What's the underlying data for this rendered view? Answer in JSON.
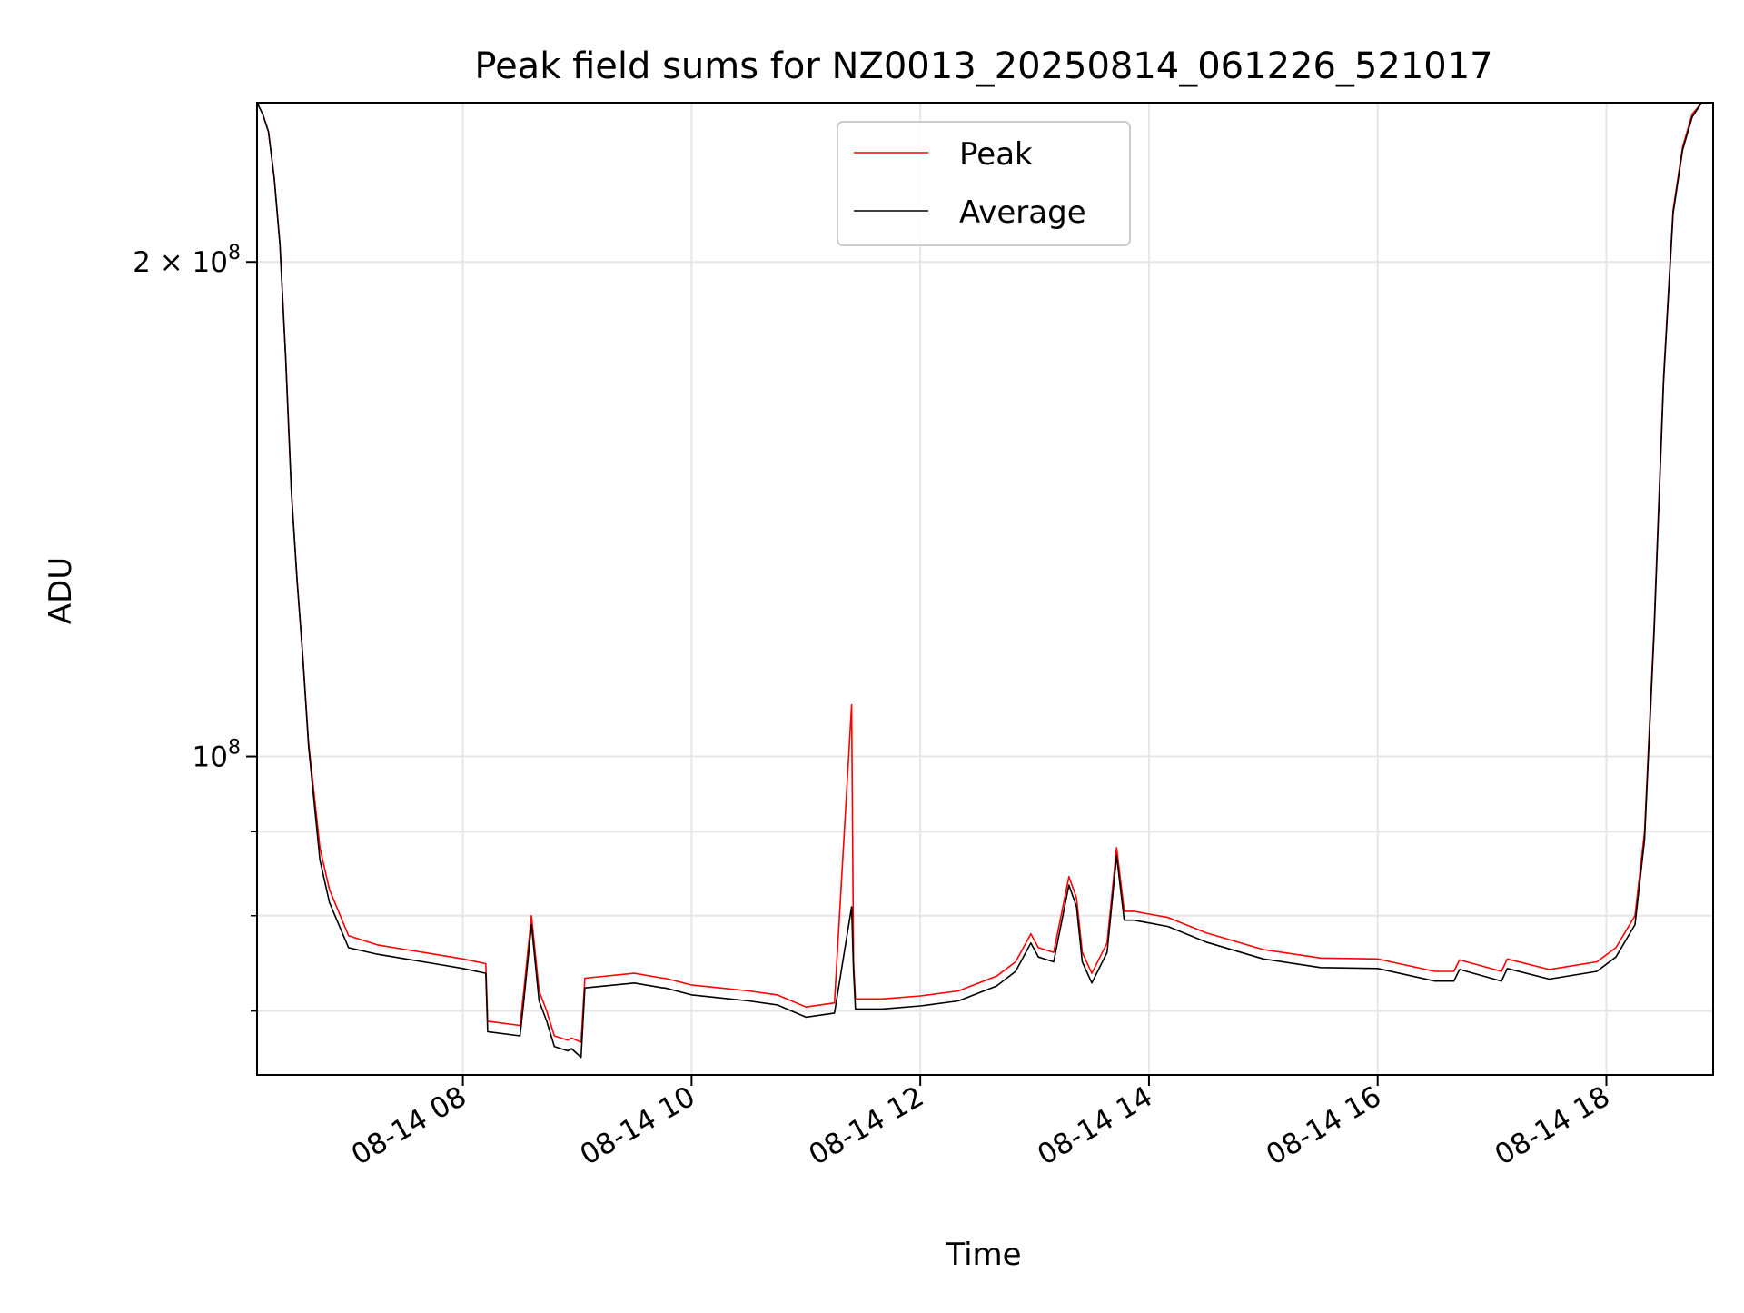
{
  "chart_data": {
    "type": "line",
    "title": "Peak field sums for NZ0013_20250814_061226_521017",
    "xlabel": "Time",
    "ylabel": "ADU",
    "x_ticks": [
      "08-14 08",
      "08-14 10",
      "08-14 12",
      "08-14 14",
      "08-14 16",
      "08-14 18"
    ],
    "y_ticks": [
      {
        "label_base": "10",
        "label_exp": "8",
        "label_prefix": "",
        "value": 100000000
      },
      {
        "label_base": "10",
        "label_exp": "8",
        "label_prefix": "2 × ",
        "value": 200000000
      }
    ],
    "xlim": [
      "2025-08-14 06:12",
      "2025-08-14 18:56"
    ],
    "ylim": [
      64000000,
      250000000
    ],
    "y_scale": "log",
    "grid": true,
    "legend_position": "upper center",
    "colors": {
      "Peak": "#ff0000",
      "Average": "#000000"
    },
    "series": [
      {
        "name": "Peak",
        "x": [
          "2025-08-14 06:12",
          "2025-08-14 06:15",
          "2025-08-14 06:18",
          "2025-08-14 06:21",
          "2025-08-14 06:24",
          "2025-08-14 06:27",
          "2025-08-14 06:30",
          "2025-08-14 06:33",
          "2025-08-14 06:36",
          "2025-08-14 06:39",
          "2025-08-14 06:45",
          "2025-08-14 06:50",
          "2025-08-14 07:00",
          "2025-08-14 07:15",
          "2025-08-14 07:30",
          "2025-08-14 07:45",
          "2025-08-14 08:00",
          "2025-08-14 08:12",
          "2025-08-14 08:13",
          "2025-08-14 08:30",
          "2025-08-14 08:32",
          "2025-08-14 08:36",
          "2025-08-14 08:40",
          "2025-08-14 08:44",
          "2025-08-14 08:48",
          "2025-08-14 08:55",
          "2025-08-14 08:57",
          "2025-08-14 09:02",
          "2025-08-14 09:04",
          "2025-08-14 09:30",
          "2025-08-14 09:45",
          "2025-08-14 09:46",
          "2025-08-14 10:00",
          "2025-08-14 10:15",
          "2025-08-14 10:30",
          "2025-08-14 10:45",
          "2025-08-14 11:00",
          "2025-08-14 11:15",
          "2025-08-14 11:24",
          "2025-08-14 11:25",
          "2025-08-14 11:26",
          "2025-08-14 11:40",
          "2025-08-14 12:00",
          "2025-08-14 12:20",
          "2025-08-14 12:40",
          "2025-08-14 12:50",
          "2025-08-14 12:58",
          "2025-08-14 13:02",
          "2025-08-14 13:10",
          "2025-08-14 13:18",
          "2025-08-14 13:22",
          "2025-08-14 13:25",
          "2025-08-14 13:30",
          "2025-08-14 13:38",
          "2025-08-14 13:43",
          "2025-08-14 13:47",
          "2025-08-14 13:52",
          "2025-08-14 14:10",
          "2025-08-14 14:30",
          "2025-08-14 15:00",
          "2025-08-14 15:30",
          "2025-08-14 16:00",
          "2025-08-14 16:30",
          "2025-08-14 16:40",
          "2025-08-14 16:43",
          "2025-08-14 17:05",
          "2025-08-14 17:08",
          "2025-08-14 17:30",
          "2025-08-14 17:55",
          "2025-08-14 18:05",
          "2025-08-14 18:15",
          "2025-08-14 18:20",
          "2025-08-14 18:25",
          "2025-08-14 18:30",
          "2025-08-14 18:35",
          "2025-08-14 18:40",
          "2025-08-14 18:45",
          "2025-08-14 18:50",
          "2025-08-14 18:56"
        ],
        "y": [
          250000000,
          246000000,
          240000000,
          225000000,
          205000000,
          175000000,
          145000000,
          128000000,
          115000000,
          102000000,
          88000000,
          83000000,
          77800000,
          76800000,
          76300000,
          75800000,
          75300000,
          74800000,
          69000000,
          68600000,
          72000000,
          80000000,
          72000000,
          70000000,
          67600000,
          67200000,
          67400000,
          67000000,
          73300000,
          73800000,
          73300000,
          73300000,
          72600000,
          72300000,
          72000000,
          71600000,
          70400000,
          70800000,
          107500000,
          75000000,
          71200000,
          71200000,
          71500000,
          72000000,
          73500000,
          75000000,
          78000000,
          76500000,
          76000000,
          84500000,
          82000000,
          76000000,
          73800000,
          77000000,
          88000000,
          80500000,
          80500000,
          79800000,
          78100000,
          76300000,
          75400000,
          75300000,
          74000000,
          74000000,
          75200000,
          74000000,
          75300000,
          74200000,
          75000000,
          76500000,
          80000000,
          90000000,
          120000000,
          170000000,
          215000000,
          235000000,
          246000000,
          250000000,
          250000000
        ]
      },
      {
        "name": "Average",
        "x": [
          "2025-08-14 06:12",
          "2025-08-14 06:15",
          "2025-08-14 06:18",
          "2025-08-14 06:21",
          "2025-08-14 06:24",
          "2025-08-14 06:27",
          "2025-08-14 06:30",
          "2025-08-14 06:33",
          "2025-08-14 06:36",
          "2025-08-14 06:39",
          "2025-08-14 06:45",
          "2025-08-14 06:50",
          "2025-08-14 07:00",
          "2025-08-14 07:15",
          "2025-08-14 07:30",
          "2025-08-14 07:45",
          "2025-08-14 08:00",
          "2025-08-14 08:12",
          "2025-08-14 08:13",
          "2025-08-14 08:30",
          "2025-08-14 08:32",
          "2025-08-14 08:36",
          "2025-08-14 08:40",
          "2025-08-14 08:44",
          "2025-08-14 08:48",
          "2025-08-14 08:55",
          "2025-08-14 08:57",
          "2025-08-14 09:02",
          "2025-08-14 09:04",
          "2025-08-14 09:30",
          "2025-08-14 09:45",
          "2025-08-14 09:46",
          "2025-08-14 10:00",
          "2025-08-14 10:15",
          "2025-08-14 10:30",
          "2025-08-14 10:45",
          "2025-08-14 11:00",
          "2025-08-14 11:15",
          "2025-08-14 11:24",
          "2025-08-14 11:25",
          "2025-08-14 11:26",
          "2025-08-14 11:40",
          "2025-08-14 12:00",
          "2025-08-14 12:20",
          "2025-08-14 12:40",
          "2025-08-14 12:50",
          "2025-08-14 12:58",
          "2025-08-14 13:02",
          "2025-08-14 13:10",
          "2025-08-14 13:18",
          "2025-08-14 13:22",
          "2025-08-14 13:25",
          "2025-08-14 13:30",
          "2025-08-14 13:38",
          "2025-08-14 13:43",
          "2025-08-14 13:47",
          "2025-08-14 13:52",
          "2025-08-14 14:10",
          "2025-08-14 14:30",
          "2025-08-14 15:00",
          "2025-08-14 15:30",
          "2025-08-14 16:00",
          "2025-08-14 16:30",
          "2025-08-14 16:40",
          "2025-08-14 16:43",
          "2025-08-14 17:05",
          "2025-08-14 17:08",
          "2025-08-14 17:30",
          "2025-08-14 17:55",
          "2025-08-14 18:05",
          "2025-08-14 18:15",
          "2025-08-14 18:20",
          "2025-08-14 18:25",
          "2025-08-14 18:30",
          "2025-08-14 18:35",
          "2025-08-14 18:40",
          "2025-08-14 18:45",
          "2025-08-14 18:50",
          "2025-08-14 18:56"
        ],
        "y": [
          250000000,
          246000000,
          240000000,
          225000000,
          205000000,
          175000000,
          145000000,
          128000000,
          115000000,
          101500000,
          86500000,
          81500000,
          76500000,
          75800000,
          75300000,
          74800000,
          74300000,
          73800000,
          68000000,
          67600000,
          71000000,
          79000000,
          71000000,
          69000000,
          66600000,
          66200000,
          66400000,
          65600000,
          72300000,
          72800000,
          72300000,
          72300000,
          71600000,
          71300000,
          71000000,
          70600000,
          69400000,
          69800000,
          81000000,
          74000000,
          70200000,
          70200000,
          70500000,
          71000000,
          72500000,
          74000000,
          77000000,
          75500000,
          75000000,
          83500000,
          81000000,
          75000000,
          72800000,
          76000000,
          87000000,
          79500000,
          79500000,
          78800000,
          77100000,
          75300000,
          74400000,
          74300000,
          73000000,
          73000000,
          74200000,
          73000000,
          74300000,
          73200000,
          74000000,
          75500000,
          79000000,
          89000000,
          119000000,
          169000000,
          214000000,
          234000000,
          245000000,
          250000000,
          250000000
        ]
      }
    ]
  }
}
